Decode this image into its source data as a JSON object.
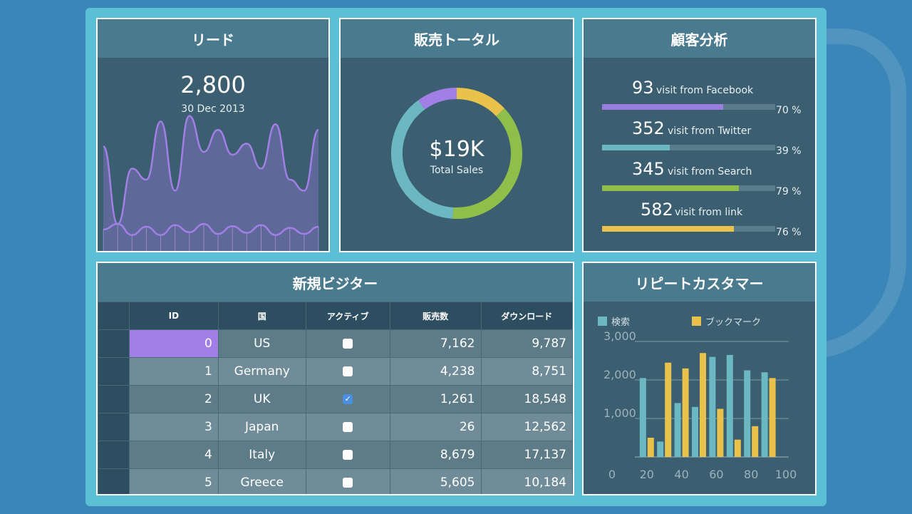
{
  "panels": {
    "lead": {
      "title": "リード",
      "value": "2,800",
      "date": "30 Dec 2013"
    },
    "sales": {
      "title": "販売トータル",
      "value": "$19K",
      "label": "Total Sales"
    },
    "analysis": {
      "title": "顧客分析",
      "rows": [
        {
          "num": "93",
          "text": "visit from Facebook",
          "pct_label": "70 %",
          "pct": 70,
          "color": "#9b7de0"
        },
        {
          "num": "352",
          "text": "visit from Twitter",
          "pct_label": "39 %",
          "pct": 39,
          "color": "#6bb8c2"
        },
        {
          "num": "345",
          "text": "visit from Search",
          "pct_label": "79 %",
          "pct": 79,
          "color": "#8fbf4a"
        },
        {
          "num": "582",
          "text": "visit from link",
          "pct_label": "76 %",
          "pct": 76,
          "color": "#e8c24a"
        }
      ]
    },
    "visitors": {
      "title": "新規ビジター",
      "headers": [
        "ID",
        "国",
        "アクティブ",
        "販売数",
        "ダウンロード"
      ],
      "rows": [
        {
          "id": "0",
          "country": "US",
          "active": false,
          "sales": "7,162",
          "downloads": "9,787"
        },
        {
          "id": "1",
          "country": "Germany",
          "active": false,
          "sales": "4,238",
          "downloads": "8,751"
        },
        {
          "id": "2",
          "country": "UK",
          "active": true,
          "sales": "1,261",
          "downloads": "18,548"
        },
        {
          "id": "3",
          "country": "Japan",
          "active": false,
          "sales": "26",
          "downloads": "12,562"
        },
        {
          "id": "4",
          "country": "Italy",
          "active": false,
          "sales": "8,679",
          "downloads": "17,137"
        },
        {
          "id": "5",
          "country": "Greece",
          "active": false,
          "sales": "5,605",
          "downloads": "10,184"
        }
      ]
    },
    "repeat": {
      "title": "リピートカスタマー"
    }
  },
  "chart_data": [
    {
      "type": "line",
      "title": "",
      "series": [
        {
          "values": [
            1900,
            500,
            1500,
            1300,
            2350,
            1100,
            2450,
            1800,
            2200,
            1750,
            1950,
            1500,
            2300,
            1300,
            1100,
            2200
          ]
        },
        {
          "values": [
            400,
            500,
            300,
            450,
            300,
            480,
            350,
            500,
            320,
            460,
            340,
            480,
            300,
            430,
            320,
            450
          ]
        }
      ]
    },
    {
      "type": "pie",
      "title": "Total Sales",
      "values": [
        10,
        13,
        38,
        39
      ],
      "colors": [
        "#a27fe6",
        "#e8c24a",
        "#8fbf4a",
        "#6bb8c2"
      ]
    },
    {
      "type": "bar",
      "categories": [
        20,
        30,
        40,
        50,
        60,
        70,
        80,
        90
      ],
      "series": [
        {
          "name": "検索",
          "color": "#6bb8c2",
          "values": [
            2050,
            400,
            1400,
            1300,
            2600,
            2650,
            2250,
            2200
          ]
        },
        {
          "name": "ブックマーク",
          "color": "#e8c24a",
          "values": [
            500,
            2450,
            2300,
            2700,
            1250,
            450,
            800,
            2050
          ]
        }
      ],
      "yticks": [
        "3,000",
        "2,000",
        "1,000"
      ],
      "xticks": [
        "0",
        "20",
        "40",
        "60",
        "80",
        "100"
      ],
      "ylim": [
        0,
        3000
      ]
    }
  ]
}
